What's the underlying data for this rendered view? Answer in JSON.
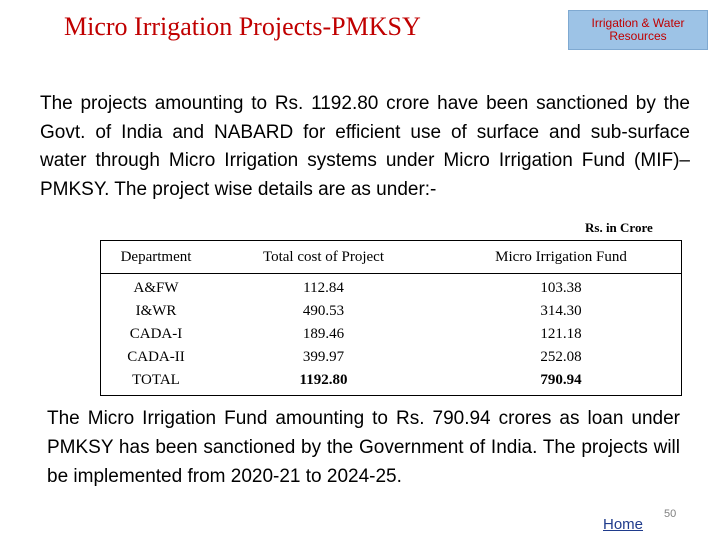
{
  "slide": {
    "title": "Micro Irrigation Projects-PMKSY",
    "department_badge": {
      "line1": "Irrigation & Water",
      "line2": "Resources"
    },
    "intro_text": "The projects amounting to Rs. 1192.80 crore have been sanctioned by the Govt. of India and NABARD for efficient use of surface and sub-surface water through Micro Irrigation systems under Micro Irrigation Fund (MIF)–PMKSY. The project wise details are as under:-",
    "unit_note": "Rs. in Crore",
    "table": {
      "headers": [
        "Department",
        "Total cost of Project",
        "Micro Irrigation Fund"
      ],
      "rows": [
        [
          "A&FW",
          "112.84",
          "103.38"
        ],
        [
          "I&WR",
          "490.53",
          "314.30"
        ],
        [
          "CADA-I",
          "189.46",
          "121.18"
        ],
        [
          "CADA-II",
          "399.97",
          "252.08"
        ]
      ],
      "total_row": [
        "TOTAL",
        "1192.80",
        "790.94"
      ]
    },
    "outro_text": "The Micro Irrigation Fund amounting to Rs. 790.94 crores as loan under PMKSY has been sanctioned by the Government of India. The projects will be implemented from 2020-21 to 2024-25.",
    "home_link": "Home",
    "page_number": "50"
  }
}
